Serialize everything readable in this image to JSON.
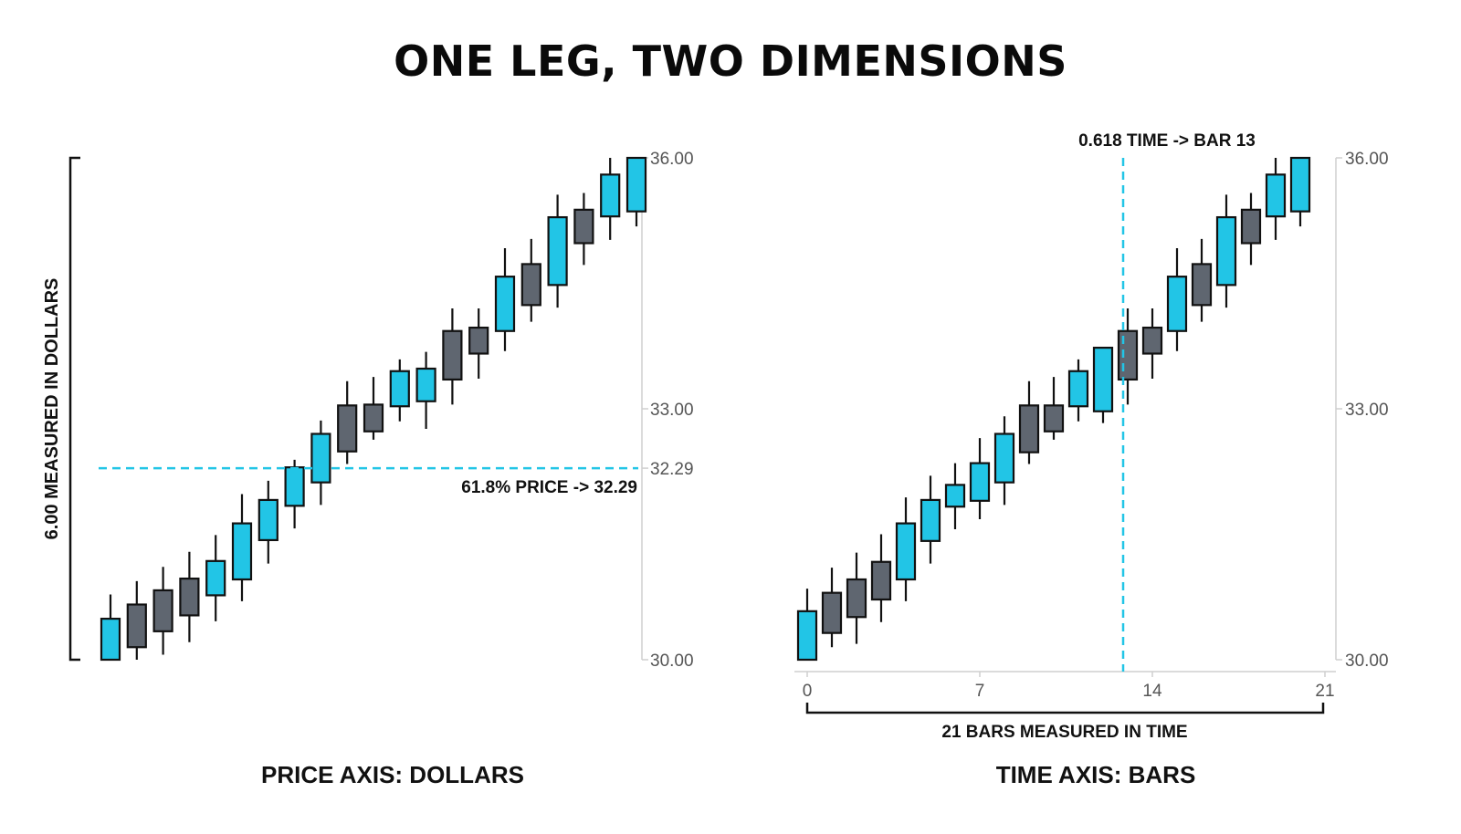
{
  "title": "ONE LEG, TWO DIMENSIONS",
  "left_caption": "PRICE AXIS: DOLLARS",
  "right_caption": "TIME AXIS: BARS",
  "colors": {
    "up": "#22c5e6",
    "down": "#5f6670",
    "guide": "#22c5e6",
    "axis": "#cfcfcf",
    "outline": "#111111"
  },
  "chart_data": [
    {
      "type": "candlestick",
      "panel": "left",
      "ylim": [
        30,
        36
      ],
      "y_ticks": [
        "36.00",
        "33.00",
        "32.29",
        "30.00"
      ],
      "bracket_label": "6.00 MEASURED IN DOLLARS",
      "hline": {
        "value": 32.29,
        "label": "61.8% PRICE -> 32.29"
      },
      "candles": [
        {
          "o": 30.0,
          "h": 30.78,
          "l": 30.0,
          "c": 30.49,
          "dir": "up"
        },
        {
          "o": 30.66,
          "h": 30.94,
          "l": 30.0,
          "c": 30.15,
          "dir": "down"
        },
        {
          "o": 30.83,
          "h": 31.11,
          "l": 30.06,
          "c": 30.34,
          "dir": "down"
        },
        {
          "o": 30.97,
          "h": 31.29,
          "l": 30.21,
          "c": 30.53,
          "dir": "down"
        },
        {
          "o": 30.77,
          "h": 31.49,
          "l": 30.46,
          "c": 31.18,
          "dir": "up"
        },
        {
          "o": 30.96,
          "h": 31.98,
          "l": 30.7,
          "c": 31.63,
          "dir": "up"
        },
        {
          "o": 31.43,
          "h": 32.14,
          "l": 31.15,
          "c": 31.91,
          "dir": "up"
        },
        {
          "o": 31.84,
          "h": 32.39,
          "l": 31.57,
          "c": 32.3,
          "dir": "up"
        },
        {
          "o": 32.12,
          "h": 32.86,
          "l": 31.85,
          "c": 32.7,
          "dir": "up"
        },
        {
          "o": 33.04,
          "h": 33.33,
          "l": 32.34,
          "c": 32.49,
          "dir": "down"
        },
        {
          "o": 33.05,
          "h": 33.38,
          "l": 32.63,
          "c": 32.73,
          "dir": "down"
        },
        {
          "o": 33.03,
          "h": 33.59,
          "l": 32.85,
          "c": 33.45,
          "dir": "up"
        },
        {
          "o": 33.09,
          "h": 33.68,
          "l": 32.76,
          "c": 33.48,
          "dir": "up"
        },
        {
          "o": 33.93,
          "h": 34.2,
          "l": 33.05,
          "c": 33.35,
          "dir": "down"
        },
        {
          "o": 33.97,
          "h": 34.2,
          "l": 33.36,
          "c": 33.66,
          "dir": "down"
        },
        {
          "o": 33.93,
          "h": 34.92,
          "l": 33.69,
          "c": 34.58,
          "dir": "up"
        },
        {
          "o": 34.73,
          "h": 35.03,
          "l": 34.04,
          "c": 34.24,
          "dir": "down"
        },
        {
          "o": 34.48,
          "h": 35.56,
          "l": 34.21,
          "c": 35.29,
          "dir": "up"
        },
        {
          "o": 35.38,
          "h": 35.58,
          "l": 34.72,
          "c": 34.98,
          "dir": "down"
        },
        {
          "o": 35.3,
          "h": 36.0,
          "l": 35.02,
          "c": 35.8,
          "dir": "up"
        },
        {
          "o": 35.36,
          "h": 36.0,
          "l": 35.18,
          "c": 36.0,
          "dir": "up"
        }
      ]
    },
    {
      "type": "candlestick",
      "panel": "right",
      "ylim": [
        30,
        36
      ],
      "xlim": [
        0,
        21
      ],
      "y_ticks": [
        "36.00",
        "33.00",
        "30.00"
      ],
      "x_ticks": [
        "0",
        "7",
        "14",
        "21"
      ],
      "bracket_label": "21 BARS MEASURED IN TIME",
      "vline": {
        "value": 13,
        "label": "0.618 TIME -> BAR 13"
      },
      "candles": [
        {
          "o": 30.0,
          "h": 30.85,
          "l": 30.0,
          "c": 30.58,
          "dir": "up"
        },
        {
          "o": 30.8,
          "h": 31.1,
          "l": 30.15,
          "c": 30.32,
          "dir": "down"
        },
        {
          "o": 30.96,
          "h": 31.28,
          "l": 30.19,
          "c": 30.51,
          "dir": "down"
        },
        {
          "o": 31.17,
          "h": 31.5,
          "l": 30.45,
          "c": 30.72,
          "dir": "down"
        },
        {
          "o": 30.96,
          "h": 31.94,
          "l": 30.7,
          "c": 31.63,
          "dir": "up"
        },
        {
          "o": 31.42,
          "h": 32.2,
          "l": 31.15,
          "c": 31.91,
          "dir": "up"
        },
        {
          "o": 31.83,
          "h": 32.35,
          "l": 31.56,
          "c": 32.09,
          "dir": "up"
        },
        {
          "o": 31.9,
          "h": 32.65,
          "l": 31.68,
          "c": 32.35,
          "dir": "up"
        },
        {
          "o": 32.12,
          "h": 32.91,
          "l": 31.85,
          "c": 32.7,
          "dir": "up"
        },
        {
          "o": 33.04,
          "h": 33.33,
          "l": 32.34,
          "c": 32.48,
          "dir": "down"
        },
        {
          "o": 33.04,
          "h": 33.38,
          "l": 32.63,
          "c": 32.73,
          "dir": "down"
        },
        {
          "o": 33.03,
          "h": 33.59,
          "l": 32.85,
          "c": 33.45,
          "dir": "up"
        },
        {
          "o": 32.97,
          "h": 33.74,
          "l": 32.83,
          "c": 33.73,
          "dir": "up"
        },
        {
          "o": 33.93,
          "h": 34.2,
          "l": 33.05,
          "c": 33.35,
          "dir": "down"
        },
        {
          "o": 33.97,
          "h": 34.2,
          "l": 33.36,
          "c": 33.66,
          "dir": "down"
        },
        {
          "o": 33.93,
          "h": 34.92,
          "l": 33.69,
          "c": 34.58,
          "dir": "up"
        },
        {
          "o": 34.73,
          "h": 35.03,
          "l": 34.04,
          "c": 34.24,
          "dir": "down"
        },
        {
          "o": 34.48,
          "h": 35.56,
          "l": 34.21,
          "c": 35.29,
          "dir": "up"
        },
        {
          "o": 35.38,
          "h": 35.58,
          "l": 34.72,
          "c": 34.98,
          "dir": "down"
        },
        {
          "o": 35.3,
          "h": 36.0,
          "l": 35.02,
          "c": 35.8,
          "dir": "up"
        },
        {
          "o": 35.36,
          "h": 36.0,
          "l": 35.18,
          "c": 36.0,
          "dir": "up"
        }
      ]
    }
  ]
}
